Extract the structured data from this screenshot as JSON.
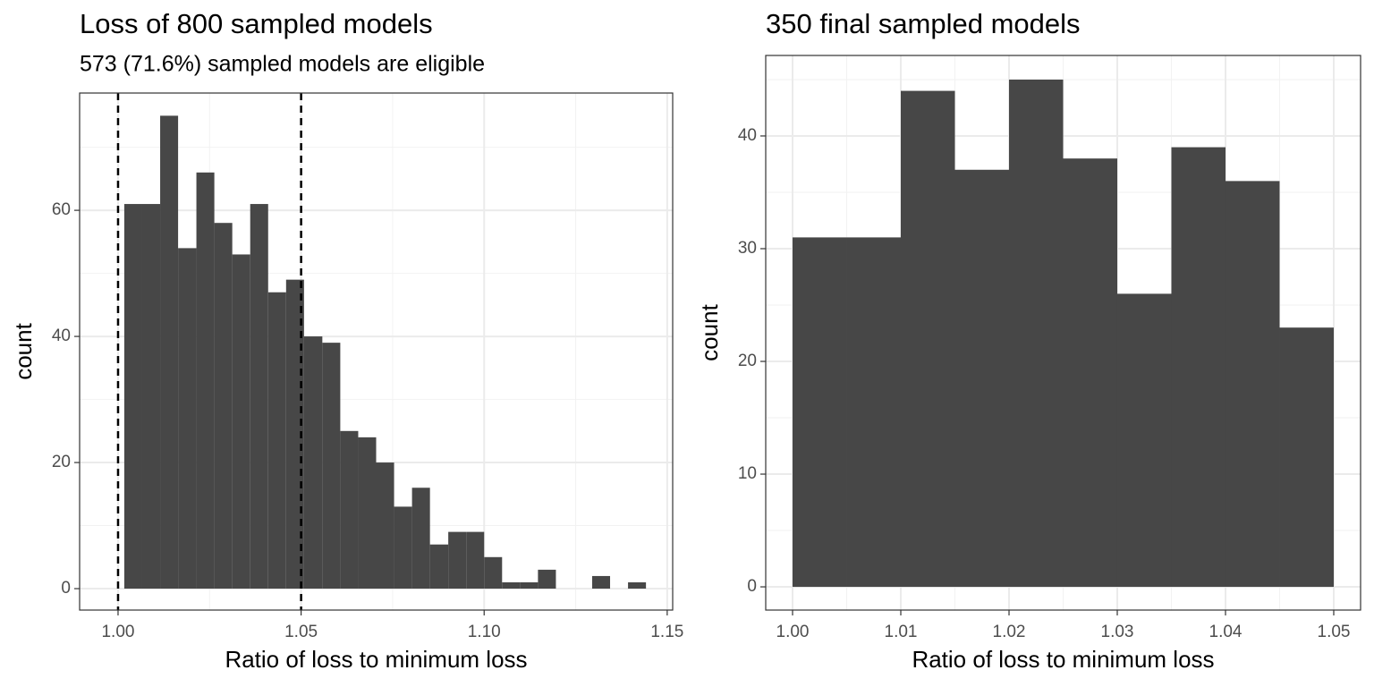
{
  "chart_data": [
    {
      "type": "histogram",
      "title": "Loss of 800 sampled models",
      "subtitle": "573 (71.6%) sampled models are eligible",
      "x_label": "Ratio of loss to minimum loss",
      "y_label": "count",
      "color": "#474747",
      "bins": [
        1.0017,
        1.0066,
        1.0115,
        1.0164,
        1.0214,
        1.0263,
        1.0312,
        1.0361,
        1.041,
        1.0459,
        1.0508,
        1.0558,
        1.0607,
        1.0656,
        1.0705,
        1.0754,
        1.0803,
        1.0852,
        1.0902,
        1.0951,
        1.1,
        1.1049,
        1.1098,
        1.1147,
        1.1196,
        1.1246,
        1.1295,
        1.1344,
        1.1393,
        1.1442
      ],
      "counts": [
        61,
        61,
        75,
        54,
        66,
        58,
        53,
        61,
        47,
        49,
        40,
        39,
        25,
        24,
        20,
        13,
        16,
        7,
        9,
        9,
        5,
        1,
        1,
        3,
        0,
        0,
        2,
        0,
        1
      ],
      "vlines": [
        1.0,
        1.05
      ],
      "vline_style": "dashed",
      "xlim": [
        0.9895,
        1.1515
      ],
      "ylim": [
        -3.4,
        78.6
      ],
      "xticks": [
        {
          "value": 1.0,
          "label": "1.00"
        },
        {
          "value": 1.05,
          "label": "1.05"
        },
        {
          "value": 1.1,
          "label": "1.10"
        },
        {
          "value": 1.15,
          "label": "1.15"
        }
      ],
      "yticks": [
        0,
        20,
        40,
        60
      ],
      "xminor": [
        1.025,
        1.075,
        1.125
      ],
      "yminor": [
        10,
        30,
        50,
        70
      ],
      "grid": true
    },
    {
      "type": "histogram",
      "title": "350 final sampled models",
      "x_label": "Ratio of loss to minimum loss",
      "y_label": "count",
      "color": "#474747",
      "bins": [
        1.0,
        1.005,
        1.01,
        1.015,
        1.02,
        1.025,
        1.03,
        1.035,
        1.04,
        1.045,
        1.05
      ],
      "counts": [
        31,
        31,
        44,
        37,
        45,
        38,
        26,
        39,
        36,
        23
      ],
      "xlim": [
        0.99752,
        1.05248
      ],
      "ylim": [
        -2.06,
        47.14
      ],
      "xticks": [
        {
          "value": 1.0,
          "label": "1.00"
        },
        {
          "value": 1.01,
          "label": "1.01"
        },
        {
          "value": 1.02,
          "label": "1.02"
        },
        {
          "value": 1.03,
          "label": "1.03"
        },
        {
          "value": 1.04,
          "label": "1.04"
        },
        {
          "value": 1.05,
          "label": "1.05"
        }
      ],
      "yticks": [
        0,
        10,
        20,
        30,
        40
      ],
      "xminor": [
        1.005,
        1.015,
        1.025,
        1.035,
        1.045
      ],
      "yminor": [
        5,
        15,
        25,
        35,
        45
      ],
      "grid": true
    }
  ]
}
